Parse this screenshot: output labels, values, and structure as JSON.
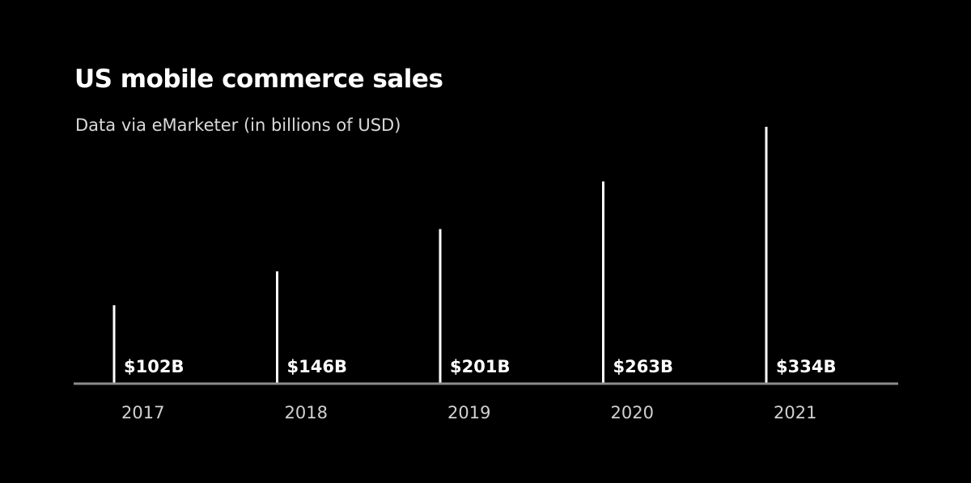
{
  "chart_data": {
    "type": "bar",
    "title": "US mobile commerce sales",
    "subtitle": "Data via eMarketer (in billions of USD)",
    "categories": [
      "2017",
      "2018",
      "2019",
      "2020",
      "2021"
    ],
    "values": [
      102,
      146,
      201,
      263,
      334
    ],
    "value_labels": [
      "$102B",
      "$146B",
      "$201B",
      "$263B",
      "$334B"
    ],
    "xlabel": "",
    "ylabel": "",
    "ylim": [
      0,
      340
    ],
    "grid": false,
    "legend": "none",
    "colors": {
      "background": "#000000",
      "bars": "#ffffff",
      "axis": "#8c8c8c"
    }
  }
}
